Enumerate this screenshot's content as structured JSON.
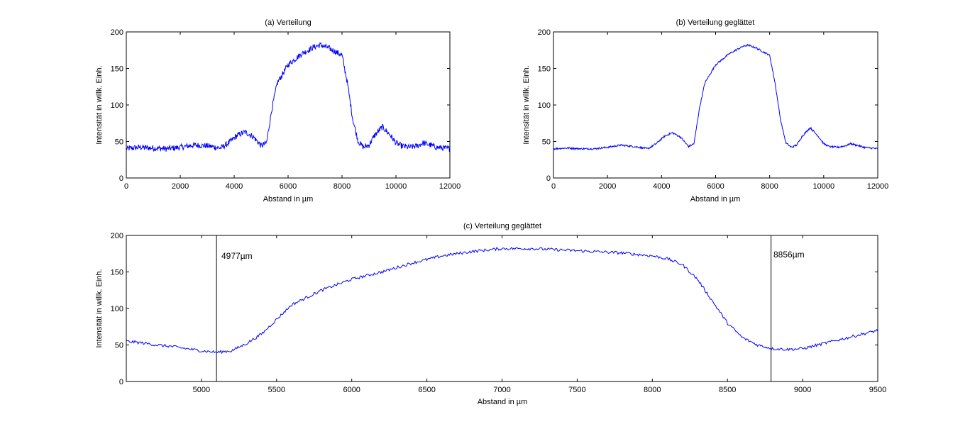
{
  "colors": {
    "line": "#0000ff",
    "axis": "#000000",
    "background": "#ffffff"
  },
  "chart_data": [
    {
      "type": "line",
      "title": "(a) Verteilung",
      "xlabel": "Abstand in µm",
      "ylabel": "Intensität in willk. Einh.",
      "xlim": [
        0,
        12000
      ],
      "ylim": [
        0,
        200
      ],
      "xticks": [
        0,
        2000,
        4000,
        6000,
        8000,
        10000,
        12000
      ],
      "yticks": [
        0,
        50,
        100,
        150,
        200
      ],
      "grid": false,
      "noise": 4,
      "series": [
        {
          "x": [
            0,
            500,
            1000,
            1500,
            2000,
            2500,
            3000,
            3500,
            3800,
            4100,
            4400,
            4700,
            5000,
            5200,
            5400,
            5600,
            6000,
            6500,
            7000,
            7200,
            7500,
            8000,
            8200,
            8400,
            8600,
            8800,
            9000,
            9200,
            9500,
            9800,
            10000,
            10200,
            10500,
            10800,
            11000,
            11200,
            11500,
            12000
          ],
          "y": [
            40,
            42,
            41,
            40,
            42,
            45,
            44,
            41,
            48,
            58,
            63,
            57,
            44,
            48,
            95,
            130,
            155,
            170,
            180,
            182,
            178,
            168,
            130,
            80,
            50,
            42,
            45,
            58,
            70,
            58,
            48,
            44,
            42,
            44,
            48,
            46,
            42,
            40
          ]
        }
      ]
    },
    {
      "type": "line",
      "title": "(b) Verteilung geglättet",
      "xlabel": "Abstand in µm",
      "ylabel": "Intensität in willk. Einh.",
      "xlim": [
        0,
        12000
      ],
      "ylim": [
        0,
        200
      ],
      "xticks": [
        0,
        2000,
        4000,
        6000,
        8000,
        10000,
        12000
      ],
      "yticks": [
        0,
        50,
        100,
        150,
        200
      ],
      "grid": false,
      "noise": 1.2,
      "series": [
        {
          "x": [
            0,
            500,
            1000,
            1500,
            2000,
            2500,
            3000,
            3500,
            3800,
            4100,
            4400,
            4700,
            5000,
            5200,
            5400,
            5600,
            6000,
            6500,
            7000,
            7200,
            7500,
            8000,
            8200,
            8400,
            8600,
            8800,
            9000,
            9200,
            9500,
            9800,
            10000,
            10200,
            10500,
            10800,
            11000,
            11200,
            11500,
            12000
          ],
          "y": [
            40,
            41,
            40,
            40,
            42,
            45,
            43,
            40,
            47,
            57,
            62,
            56,
            43,
            47,
            95,
            130,
            155,
            170,
            180,
            182,
            178,
            168,
            130,
            80,
            48,
            42,
            45,
            57,
            69,
            57,
            47,
            43,
            42,
            44,
            47,
            45,
            42,
            40
          ]
        }
      ]
    },
    {
      "type": "line",
      "title": "(c) Verteilung geglättet",
      "xlabel": "Abstand in µm",
      "ylabel": "Intensität in willk. Einh.",
      "xlim": [
        4500,
        9500
      ],
      "ylim": [
        0,
        200
      ],
      "xticks": [
        5000,
        5500,
        6000,
        6500,
        7000,
        7500,
        8000,
        8500,
        9000,
        9500
      ],
      "yticks": [
        0,
        50,
        100,
        150,
        200
      ],
      "grid": false,
      "noise": 2,
      "series": [
        {
          "x": [
            4500,
            4600,
            4700,
            4800,
            4900,
            5000,
            5100,
            5200,
            5300,
            5400,
            5500,
            5600,
            5700,
            5800,
            6000,
            6200,
            6400,
            6600,
            6800,
            7000,
            7200,
            7400,
            7600,
            7800,
            8000,
            8100,
            8200,
            8300,
            8400,
            8500,
            8600,
            8700,
            8800,
            8900,
            9000,
            9100,
            9200,
            9300,
            9400,
            9500
          ],
          "y": [
            55,
            53,
            50,
            48,
            45,
            42,
            40,
            42,
            52,
            65,
            85,
            105,
            115,
            125,
            140,
            150,
            162,
            172,
            178,
            182,
            182,
            180,
            178,
            176,
            172,
            168,
            160,
            140,
            110,
            80,
            60,
            50,
            45,
            44,
            45,
            50,
            55,
            60,
            65,
            70
          ]
        }
      ],
      "annotations": [
        {
          "x": 5100,
          "label": "4977µm"
        },
        {
          "x": 8790,
          "label": "8856µm"
        }
      ]
    }
  ]
}
